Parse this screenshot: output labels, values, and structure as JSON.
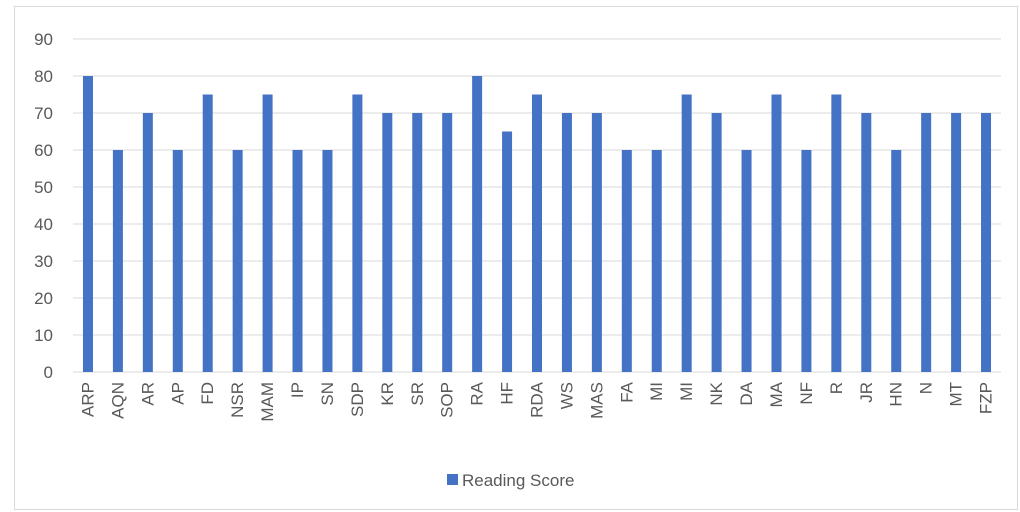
{
  "chart_data": {
    "type": "bar",
    "categories": [
      "ARP",
      "AQN",
      "AR",
      "AP",
      "FD",
      "NSR",
      "MAM",
      "IP",
      "SN",
      "SDP",
      "KR",
      "SR",
      "SOP",
      "RA",
      "HF",
      "RDA",
      "WS",
      "MAS",
      "FA",
      "MI",
      "MI",
      "NK",
      "DA",
      "MA",
      "NF",
      "R",
      "JR",
      "HN",
      "N",
      "MT",
      "FZP"
    ],
    "series": [
      {
        "name": "Reading Score",
        "color": "#4472c4",
        "values": [
          80,
          60,
          70,
          60,
          75,
          60,
          75,
          60,
          60,
          75,
          70,
          70,
          70,
          80,
          65,
          75,
          70,
          70,
          60,
          60,
          75,
          70,
          60,
          75,
          60,
          75,
          70,
          60,
          70,
          70,
          70
        ]
      }
    ],
    "title": "",
    "xlabel": "",
    "ylabel": "",
    "ylim": [
      0,
      90
    ],
    "y_ticks": [
      0,
      10,
      20,
      30,
      40,
      50,
      60,
      70,
      80,
      90
    ],
    "grid": true,
    "legend_position": "bottom",
    "colors": {
      "bar": "#4472c4",
      "grid": "#d9d9d9",
      "text": "#595959"
    }
  }
}
